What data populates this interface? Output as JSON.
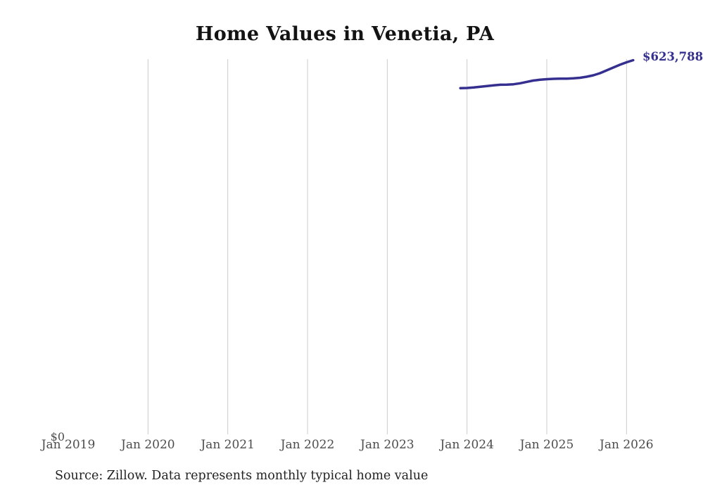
{
  "page": {
    "source_note": "Source: Zillow. Data represents monthly typical home value"
  },
  "chart_data": {
    "type": "line",
    "title": "Home Values in Venetia, PA",
    "series_name": "Monthly typical home value",
    "x": [
      "2023-12",
      "2024-01",
      "2024-02",
      "2024-03",
      "2024-04",
      "2024-05",
      "2024-06",
      "2024-07",
      "2024-08",
      "2024-09",
      "2024-10",
      "2024-11",
      "2024-12",
      "2025-01",
      "2025-02",
      "2025-03",
      "2025-04",
      "2025-05",
      "2025-06",
      "2025-07",
      "2025-08",
      "2025-09",
      "2025-10",
      "2025-11",
      "2025-12",
      "2026-01",
      "2026-02"
    ],
    "values": [
      577400,
      577700,
      578500,
      579700,
      580900,
      582000,
      583000,
      583300,
      583900,
      585500,
      587900,
      590100,
      591400,
      592300,
      592900,
      593100,
      593200,
      593700,
      594600,
      596400,
      598700,
      602200,
      606900,
      611500,
      616200,
      620300,
      623788
    ],
    "end_label": "$623,788",
    "y_zero_label": "$0",
    "x_tick_labels": [
      "Jan 2019",
      "Jan 2020",
      "Jan 2021",
      "Jan 2022",
      "Jan 2023",
      "Jan 2024",
      "Jan 2025",
      "Jan 2026"
    ],
    "xlim": [
      "2019-01",
      "2026-03"
    ],
    "ylim": [
      0,
      623788
    ],
    "grid": "vertical-only",
    "legend": "none",
    "line_color": "#353090",
    "gridline_color": "#cccccc",
    "axis_label_color": "#4d4d4d"
  }
}
